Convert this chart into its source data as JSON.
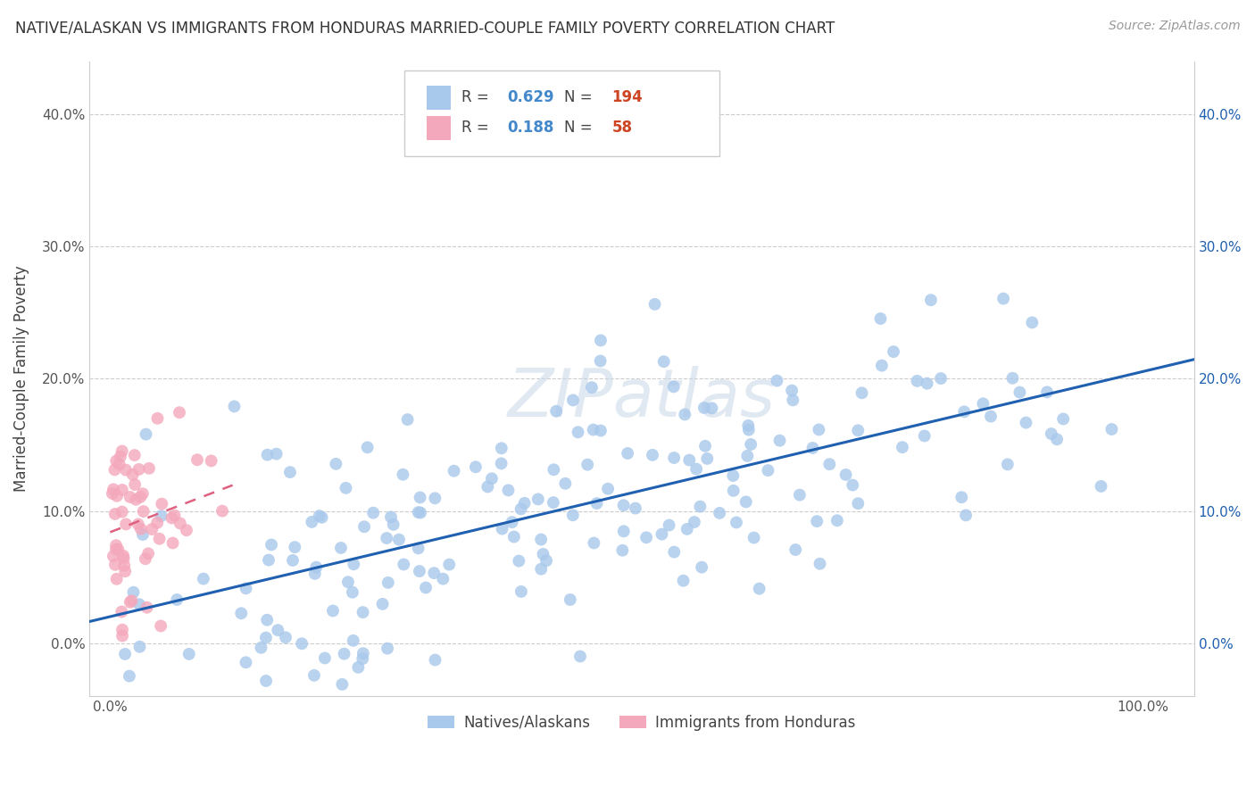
{
  "title": "NATIVE/ALASKAN VS IMMIGRANTS FROM HONDURAS MARRIED-COUPLE FAMILY POVERTY CORRELATION CHART",
  "source": "Source: ZipAtlas.com",
  "ylabel": "Married-Couple Family Poverty",
  "ylim": [
    -0.04,
    0.44
  ],
  "xlim": [
    -0.02,
    1.05
  ],
  "blue_R": 0.629,
  "blue_N": 194,
  "pink_R": 0.188,
  "pink_N": 58,
  "blue_color": "#A8C8EC",
  "pink_color": "#F4A8BC",
  "blue_line_color": "#2060B0",
  "pink_line_color": "#E06080",
  "yticks": [
    0.0,
    0.1,
    0.2,
    0.3,
    0.4
  ],
  "ytick_labels": [
    "0.0%",
    "10.0%",
    "20.0%",
    "30.0%",
    "40.0%"
  ],
  "xticks": [
    0.0,
    0.25,
    0.5,
    0.75,
    1.0
  ],
  "xtick_labels": [
    "0.0%",
    "",
    "",
    "",
    "100.0%"
  ],
  "watermark": "ZIPatlas",
  "legend_label_blue": "Natives/Alaskans",
  "legend_label_pink": "Immigrants from Honduras",
  "legend_R_color": "#4488CC",
  "legend_N_color": "#CC4422",
  "legend_text_color": "#444444"
}
